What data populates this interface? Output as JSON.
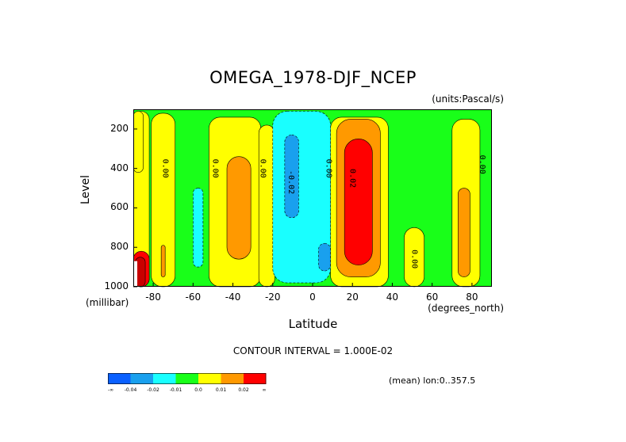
{
  "chart_data": {
    "type": "contour",
    "title": "OMEGA_1978-DJF_NCEP",
    "units_label": "(units:Pascal/s)",
    "xlabel": "Latitude",
    "x_unit_label": "(degrees_north)",
    "ylabel": "Level",
    "y_unit_label": "(millibar)",
    "xlim": [
      -90,
      90
    ],
    "ylim": [
      1000,
      100
    ],
    "y_scale": "linear",
    "x_ticks": [
      "-80",
      "-60",
      "-40",
      "-20",
      "0",
      "20",
      "40",
      "60",
      "80"
    ],
    "y_ticks": [
      "200",
      "400",
      "600",
      "800",
      "1000"
    ],
    "contour_interval_text": "CONTOUR INTERVAL = 1.000E-02",
    "mean_info": "(mean) lon:0..357.5",
    "contour_labels": [
      {
        "text": "0.00",
        "x": -75,
        "y": 400
      },
      {
        "text": "0.00",
        "x": -50,
        "y": 400
      },
      {
        "text": "0.00",
        "x": -26,
        "y": 400
      },
      {
        "text": "-0.02",
        "x": -12,
        "y": 470
      },
      {
        "text": "0.00",
        "x": 7,
        "y": 400
      },
      {
        "text": "0.02",
        "x": 19,
        "y": 450
      },
      {
        "text": "0.00",
        "x": 50,
        "y": 860
      },
      {
        "text": "0.00",
        "x": 84,
        "y": 380
      }
    ],
    "colorbar": {
      "levels": [
        "-∞",
        "-0.04",
        "-0.02",
        "-0.01",
        "0.0",
        "0.01",
        "0.02",
        "∞"
      ],
      "colors": [
        "#0a60ff",
        "#19a0ee",
        "#19ffff",
        "#19ff19",
        "#ffff00",
        "#ff9900",
        "#ff0000"
      ]
    },
    "colors": {
      "strong_negative": "#0a60ff",
      "negative": "#19a0ee",
      "weak_negative": "#19ffff",
      "near_zero_negative": "#19ff19",
      "near_zero_positive": "#ffff00",
      "positive": "#ff9900",
      "strong_positive": "#ff0000",
      "very_strong_positive": "#c80000"
    },
    "regions": [
      {
        "value": "weak_negative",
        "lat_min": -20,
        "lat_max": 9,
        "p_min": 110,
        "p_max": 980
      },
      {
        "value": "negative",
        "lat_min": -14,
        "lat_max": -7,
        "p_min": 230,
        "p_max": 650
      },
      {
        "value": "negative",
        "lat_min": 3,
        "lat_max": 9,
        "p_min": 780,
        "p_max": 920
      },
      {
        "value": "weak_negative",
        "lat_min": -60,
        "lat_max": -55,
        "p_min": 500,
        "p_max": 900
      },
      {
        "value": "positive",
        "lat_min": 12,
        "lat_max": 34,
        "p_min": 150,
        "p_max": 950
      },
      {
        "value": "strong_positive",
        "lat_min": 16,
        "lat_max": 30,
        "p_min": 250,
        "p_max": 890
      },
      {
        "value": "positive",
        "lat_min": -43,
        "lat_max": -31,
        "p_min": 340,
        "p_max": 860
      },
      {
        "value": "positive",
        "lat_min": 73,
        "lat_max": 79,
        "p_min": 500,
        "p_max": 950
      },
      {
        "value": "strong_positive",
        "lat_min": -90,
        "lat_max": -82,
        "p_min": 820,
        "p_max": 1000
      },
      {
        "value": "very_strong_positive",
        "lat_min": -89,
        "lat_max": -84,
        "p_min": 850,
        "p_max": 1000
      },
      {
        "value": "positive",
        "lat_min": -76,
        "lat_max": -74,
        "p_min": 790,
        "p_max": 950
      }
    ]
  }
}
